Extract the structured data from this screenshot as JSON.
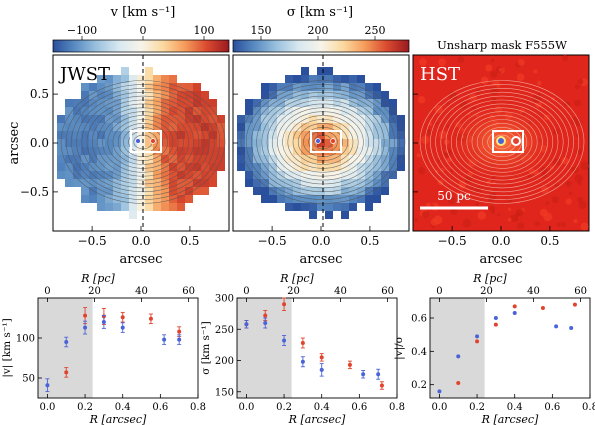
{
  "colors": {
    "vel_cmap": [
      "#2a4f9c",
      "#5a8cc2",
      "#9cc2de",
      "#d8e8f0",
      "#f7f4ea",
      "#fbd9a0",
      "#f59b5a",
      "#d9492e",
      "#9a1a22"
    ],
    "sig_cmap": [
      "#2a4f9c",
      "#5a8cc2",
      "#9cc2de",
      "#d8e8f0",
      "#f7f4ea",
      "#fbd9a0",
      "#f59b5a",
      "#d9492e",
      "#9a1a22"
    ],
    "hst_bg": "#e0261c",
    "shade": "#d9d9d9",
    "red_series": "#e0442e",
    "blue_series": "#4a64d8"
  },
  "maps": {
    "colorbars": [
      {
        "label": "v [km s⁻¹]",
        "ticks": [
          "−100",
          "0",
          "100"
        ]
      },
      {
        "label": "σ [km s⁻¹]",
        "ticks": [
          "150",
          "200",
          "250"
        ]
      }
    ],
    "panels": [
      {
        "tag": "JWST",
        "xlabel": "arcsec",
        "ylabel": "arcsec",
        "xticks": [
          "−0.5",
          "0.0",
          "0.5"
        ],
        "yticks": [
          "0.5",
          "0.0",
          "−0.5"
        ]
      },
      {
        "tag": "",
        "xlabel": "arcsec",
        "xticks": [
          "−0.5",
          "0.0",
          "0.5"
        ]
      },
      {
        "tag": "HST",
        "title": "Unsharp mask F555W",
        "xlabel": "arcsec",
        "xticks": [
          "−0.5",
          "0.0",
          "0.5"
        ],
        "scalebar": "50 pc"
      }
    ]
  },
  "chart_data": [
    {
      "type": "scatter",
      "top_axis_label": "R [pc]",
      "top_ticks": [
        "0",
        "20",
        "40",
        "60"
      ],
      "xlabel": "R [arcsec]",
      "ylabel": "|v| [km s⁻¹]",
      "xticks": [
        "0.0",
        "0.2",
        "0.4",
        "0.6",
        "0.8"
      ],
      "yticks": [
        "50",
        "100"
      ],
      "xlim": [
        -0.05,
        0.8
      ],
      "ylim": [
        25,
        150
      ],
      "shade_x": [
        -0.05,
        0.24
      ],
      "series": [
        {
          "color": "red",
          "points": [
            [
              0.1,
              57,
              6
            ],
            [
              0.2,
              128,
              10
            ],
            [
              0.3,
              127,
              10
            ],
            [
              0.4,
              126,
              6
            ],
            [
              0.55,
              124,
              6
            ],
            [
              0.7,
              108,
              6
            ]
          ]
        },
        {
          "color": "blue",
          "points": [
            [
              0.0,
              41,
              8
            ],
            [
              0.1,
              95,
              6
            ],
            [
              0.2,
              113,
              8
            ],
            [
              0.3,
              120,
              8
            ],
            [
              0.4,
              113,
              6
            ],
            [
              0.62,
              98,
              6
            ],
            [
              0.7,
              98,
              6
            ]
          ]
        }
      ]
    },
    {
      "type": "scatter",
      "top_axis_label": "R [pc]",
      "top_ticks": [
        "0",
        "20",
        "40",
        "60"
      ],
      "xlabel": "R [arcsec]",
      "ylabel": "σ [km s⁻¹]",
      "xticks": [
        "0.0",
        "0.2",
        "0.4",
        "0.6",
        "0.8"
      ],
      "yticks": [
        "150",
        "200",
        "250",
        "300"
      ],
      "xlim": [
        -0.05,
        0.8
      ],
      "ylim": [
        140,
        300
      ],
      "shade_x": [
        -0.05,
        0.24
      ],
      "series": [
        {
          "color": "red",
          "points": [
            [
              0.0,
              258,
              6
            ],
            [
              0.1,
              272,
              8
            ],
            [
              0.2,
              290,
              10
            ],
            [
              0.3,
              228,
              8
            ],
            [
              0.4,
              205,
              6
            ],
            [
              0.55,
              193,
              6
            ],
            [
              0.72,
              160,
              6
            ]
          ]
        },
        {
          "color": "blue",
          "points": [
            [
              0.0,
              258,
              6
            ],
            [
              0.1,
              260,
              8
            ],
            [
              0.2,
              232,
              8
            ],
            [
              0.3,
              198,
              8
            ],
            [
              0.4,
              185,
              10
            ],
            [
              0.62,
              178,
              6
            ],
            [
              0.7,
              178,
              8
            ]
          ]
        }
      ]
    },
    {
      "type": "scatter",
      "top_axis_label": "R [pc]",
      "top_ticks": [
        "0",
        "20",
        "40",
        "60"
      ],
      "xlabel": "R [arcsec]",
      "ylabel": "|v|/σ",
      "xticks": [
        "0.0",
        "0.2",
        "0.4",
        "0.6",
        "0.8"
      ],
      "yticks": [
        "0.2",
        "0.4",
        "0.6"
      ],
      "xlim": [
        -0.05,
        0.8
      ],
      "ylim": [
        0.12,
        0.72
      ],
      "shade_x": [
        -0.05,
        0.24
      ],
      "series": [
        {
          "color": "red",
          "points": [
            [
              0.1,
              0.21
            ],
            [
              0.2,
              0.46
            ],
            [
              0.3,
              0.56
            ],
            [
              0.4,
              0.67
            ],
            [
              0.55,
              0.66
            ],
            [
              0.72,
              0.68
            ]
          ]
        },
        {
          "color": "blue",
          "points": [
            [
              0.0,
              0.16
            ],
            [
              0.1,
              0.37
            ],
            [
              0.2,
              0.49
            ],
            [
              0.3,
              0.6
            ],
            [
              0.4,
              0.63
            ],
            [
              0.62,
              0.55
            ],
            [
              0.7,
              0.54
            ]
          ]
        }
      ]
    }
  ]
}
